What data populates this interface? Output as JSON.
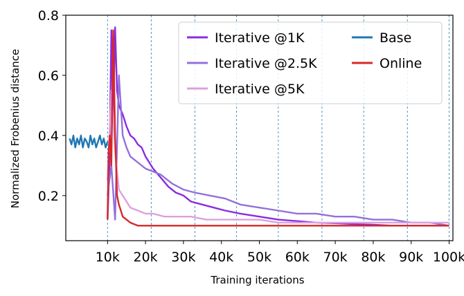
{
  "chart_data": {
    "type": "line",
    "xlabel": "Training iterations",
    "ylabel": "Normalized Frobenius distance",
    "xlim": [
      -1000,
      101000
    ],
    "ylim": [
      0.05,
      0.8
    ],
    "x_ticks": [
      10000,
      20000,
      30000,
      40000,
      50000,
      60000,
      70000,
      80000,
      90000,
      100000
    ],
    "x_tick_labels": [
      "10k",
      "20k",
      "30k",
      "40k",
      "50k",
      "60k",
      "70k",
      "80k",
      "90k",
      "100k"
    ],
    "y_ticks": [
      0.2,
      0.4,
      0.6,
      0.8
    ],
    "y_tick_labels": [
      "0.2",
      "0.4",
      "0.6",
      "0.8"
    ],
    "vlines": [
      10000,
      21500,
      33000,
      44000,
      55000,
      66500,
      77500,
      89000,
      100000
    ],
    "legend": {
      "placement": "top-right",
      "columns": 2
    },
    "series": [
      {
        "name": "Iterative @1K",
        "color": "#8a2be2",
        "x": [
          10000,
          10500,
          11000,
          11500,
          12000,
          12500,
          13000,
          14000,
          15000,
          16000,
          17000,
          18000,
          19000,
          20000,
          21000,
          22000,
          24000,
          26000,
          28000,
          30000,
          32000,
          35000,
          38000,
          41000,
          45000,
          50000,
          55000,
          60000,
          65000,
          70000,
          75000,
          80000,
          85000,
          90000,
          95000,
          100000
        ],
        "y": [
          0.12,
          0.3,
          0.75,
          0.45,
          0.76,
          0.55,
          0.5,
          0.47,
          0.43,
          0.4,
          0.39,
          0.37,
          0.36,
          0.33,
          0.31,
          0.29,
          0.26,
          0.23,
          0.21,
          0.2,
          0.18,
          0.17,
          0.16,
          0.15,
          0.14,
          0.13,
          0.12,
          0.115,
          0.11,
          0.108,
          0.105,
          0.103,
          0.1,
          0.1,
          0.1,
          0.1
        ]
      },
      {
        "name": "Iterative @2.5K",
        "color": "#9370db",
        "x": [
          10000,
          10500,
          11000,
          12000,
          13000,
          14000,
          15000,
          16000,
          17000,
          18000,
          20000,
          22000,
          24000,
          27000,
          30000,
          33000,
          37000,
          41000,
          45000,
          50000,
          55000,
          60000,
          65000,
          70000,
          75000,
          80000,
          85000,
          90000,
          95000,
          100000
        ],
        "y": [
          0.2,
          0.25,
          0.3,
          0.12,
          0.6,
          0.4,
          0.36,
          0.33,
          0.32,
          0.31,
          0.29,
          0.28,
          0.27,
          0.24,
          0.22,
          0.21,
          0.2,
          0.19,
          0.17,
          0.16,
          0.15,
          0.14,
          0.14,
          0.13,
          0.13,
          0.12,
          0.12,
          0.11,
          0.11,
          0.1
        ]
      },
      {
        "name": "Iterative @5K",
        "color": "#dda0dd",
        "x": [
          10000,
          10500,
          11000,
          12000,
          13000,
          14000,
          15000,
          16000,
          18000,
          20000,
          22000,
          25000,
          28000,
          32000,
          36000,
          40000,
          45000,
          50000,
          55000,
          60000,
          65000,
          70000,
          75000,
          80000,
          85000,
          90000,
          95000,
          100000
        ],
        "y": [
          0.25,
          0.4,
          0.55,
          0.35,
          0.22,
          0.2,
          0.18,
          0.16,
          0.15,
          0.14,
          0.14,
          0.13,
          0.13,
          0.13,
          0.12,
          0.12,
          0.12,
          0.12,
          0.11,
          0.11,
          0.11,
          0.11,
          0.11,
          0.11,
          0.11,
          0.11,
          0.11,
          0.11
        ]
      },
      {
        "name": "Base",
        "color": "#1f77b4",
        "x": [
          0,
          500,
          1000,
          1500,
          2000,
          2500,
          3000,
          3500,
          4000,
          4500,
          5000,
          5500,
          6000,
          6500,
          7000,
          7500,
          8000,
          8500,
          9000,
          9500,
          10000
        ],
        "y": [
          0.39,
          0.37,
          0.4,
          0.36,
          0.39,
          0.37,
          0.4,
          0.36,
          0.39,
          0.38,
          0.36,
          0.4,
          0.37,
          0.39,
          0.36,
          0.38,
          0.4,
          0.37,
          0.39,
          0.36,
          0.38
        ]
      },
      {
        "name": "Online",
        "color": "#d62728",
        "x": [
          10000,
          10300,
          10600,
          11000,
          11500,
          12000,
          12500,
          13000,
          13500,
          14000,
          15000,
          16000,
          17000,
          18000,
          20000,
          22000,
          25000,
          28000,
          32000,
          36000,
          40000,
          45000,
          50000,
          55000,
          60000,
          65000,
          70000,
          75000,
          80000,
          85000,
          90000,
          95000,
          100000
        ],
        "y": [
          0.12,
          0.35,
          0.4,
          0.3,
          0.75,
          0.4,
          0.2,
          0.17,
          0.15,
          0.13,
          0.12,
          0.11,
          0.105,
          0.1,
          0.1,
          0.1,
          0.1,
          0.1,
          0.1,
          0.1,
          0.1,
          0.1,
          0.1,
          0.1,
          0.1,
          0.1,
          0.1,
          0.1,
          0.1,
          0.1,
          0.1,
          0.1,
          0.1
        ]
      }
    ]
  }
}
